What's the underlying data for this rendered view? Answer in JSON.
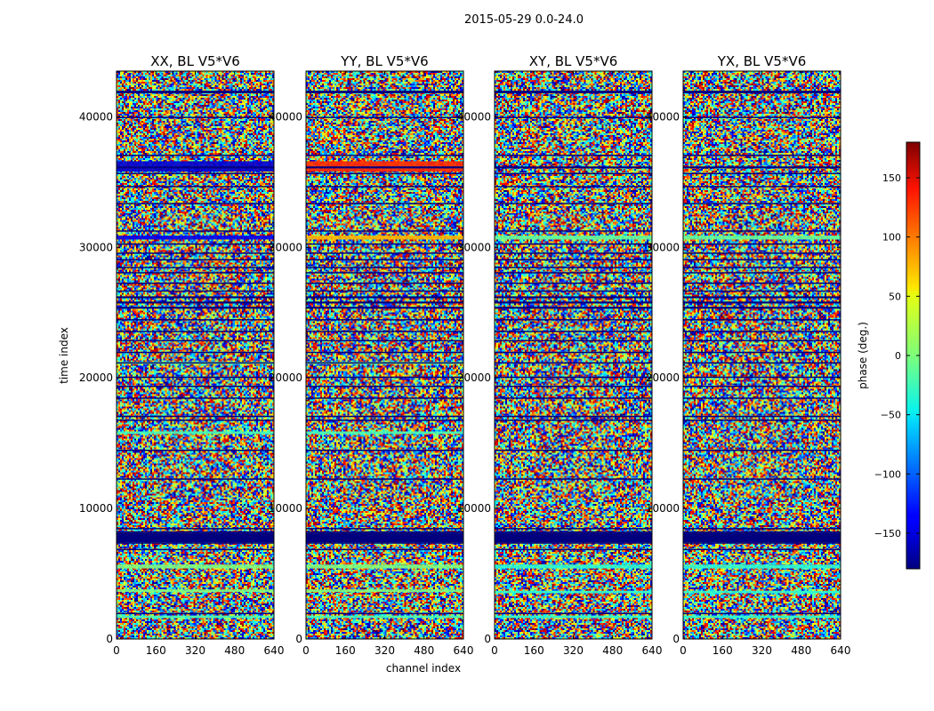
{
  "chart_data": {
    "type": "heatmap",
    "title": "2015-05-29 0.0-24.0",
    "xlabel": "channel index",
    "ylabel": "time index",
    "xlim": [
      0,
      640
    ],
    "ylim": [
      0,
      43500
    ],
    "xticks": [
      0,
      160,
      320,
      480,
      640
    ],
    "yticks": [
      0,
      10000,
      20000,
      30000,
      40000
    ],
    "colormap": "jet",
    "colorbar": {
      "label": "phase (deg.)",
      "range": [
        -180,
        180
      ],
      "ticks": [
        -150,
        -100,
        -50,
        0,
        50,
        100,
        150
      ],
      "placement": "right"
    },
    "panels": [
      {
        "title": "XX, BL V5*V6",
        "corr": "XX"
      },
      {
        "title": "YY, BL V5*V6",
        "corr": "YY"
      },
      {
        "title": "XY, BL V5*V6",
        "corr": "XY"
      },
      {
        "title": "YX, BL V5*V6",
        "corr": "YX"
      }
    ],
    "flagged_bands_time": [
      [
        41800,
        42000
      ],
      [
        39900,
        40000
      ],
      [
        37000,
        37100
      ],
      [
        36050,
        36200
      ],
      [
        35600,
        35700
      ],
      [
        34600,
        34700
      ],
      [
        33300,
        33400
      ],
      [
        31200,
        31300
      ],
      [
        30200,
        30300
      ],
      [
        29500,
        29600
      ],
      [
        29000,
        29100
      ],
      [
        28400,
        28500
      ],
      [
        28000,
        28100
      ],
      [
        27200,
        27300
      ],
      [
        26600,
        26700
      ],
      [
        26100,
        26250
      ],
      [
        25700,
        25850
      ],
      [
        25300,
        25450
      ],
      [
        24400,
        24500
      ],
      [
        23500,
        23600
      ],
      [
        22800,
        22900
      ],
      [
        21900,
        22000
      ],
      [
        21100,
        21200
      ],
      [
        20000,
        20100
      ],
      [
        19300,
        19400
      ],
      [
        18400,
        18500
      ],
      [
        17000,
        17100
      ],
      [
        16700,
        16800
      ],
      [
        14400,
        14500
      ],
      [
        12200,
        12300
      ],
      [
        8400,
        8500
      ],
      [
        8150,
        8250
      ],
      [
        7300,
        7400
      ],
      [
        6800,
        6900
      ],
      [
        1900,
        2000
      ]
    ],
    "dark_blue_bands_time": [
      [
        7400,
        8150
      ]
    ],
    "colored_stripes_time": {
      "XX": [
        {
          "range": [
            35800,
            36600
          ],
          "phase": -150
        },
        {
          "range": [
            30600,
            30900
          ],
          "phase": -140
        },
        {
          "range": [
            21050,
            21250
          ],
          "phase": 0
        },
        {
          "range": [
            15700,
            15900
          ],
          "phase": -20
        },
        {
          "range": [
            5400,
            5700
          ],
          "phase": 0
        },
        {
          "range": [
            3600,
            3800
          ],
          "phase": 0
        },
        {
          "range": [
            1600,
            1800
          ],
          "phase": -20
        }
      ],
      "YY": [
        {
          "range": [
            35800,
            36600
          ],
          "phase": 120
        },
        {
          "range": [
            30600,
            30900
          ],
          "phase": 70
        },
        {
          "range": [
            21050,
            21250
          ],
          "phase": 0
        },
        {
          "range": [
            15700,
            15900
          ],
          "phase": -20
        },
        {
          "range": [
            5400,
            5700
          ],
          "phase": 0
        },
        {
          "range": [
            3600,
            3800
          ],
          "phase": 0
        },
        {
          "range": [
            1600,
            1800
          ],
          "phase": -20
        }
      ],
      "XY": [
        {
          "range": [
            30600,
            30900
          ],
          "phase": -10
        },
        {
          "range": [
            5400,
            5700
          ],
          "phase": -30
        },
        {
          "range": [
            3500,
            3700
          ],
          "phase": -30
        },
        {
          "range": [
            1600,
            1800
          ],
          "phase": -30
        }
      ],
      "YX": [
        {
          "range": [
            30600,
            30900
          ],
          "phase": -10
        },
        {
          "range": [
            5400,
            5700
          ],
          "phase": -30
        },
        {
          "range": [
            3500,
            3700
          ],
          "phase": -30
        },
        {
          "range": [
            1600,
            1800
          ],
          "phase": -30
        }
      ]
    }
  }
}
